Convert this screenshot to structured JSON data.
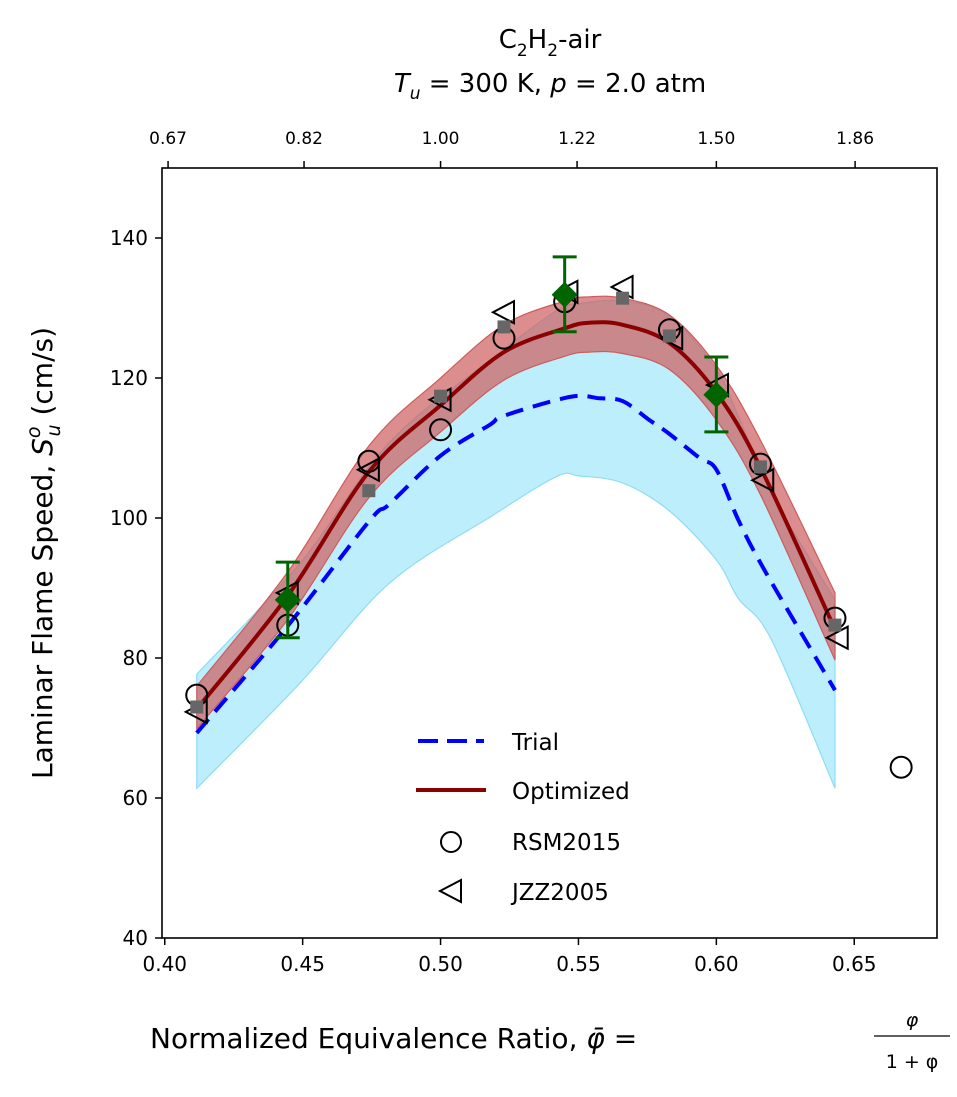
{
  "chart_data": {
    "type": "line",
    "title_line1": {
      "species": "C",
      "sub1": "2",
      "mid": "H",
      "sub2": "2",
      "tail": "-air"
    },
    "title_line2": {
      "T": "T",
      "T_sub": "u",
      "part1": " = 300 K, ",
      "p": "p",
      "part2": " = 2.0 atm"
    },
    "xlabel": "Normalized Equivalence Ratio, ",
    "xlabel_math": {
      "phibar": "φ̄",
      "eq": " = ",
      "num": "φ",
      "den": "1 + φ"
    },
    "ylabel": "Laminar Flame Speed, ",
    "ylabel_math": {
      "S": "S",
      "sup": "o",
      "sub": "u",
      "unit": " (cm/s)"
    },
    "xlim": [
      0.399,
      0.68
    ],
    "ylim": [
      40,
      150
    ],
    "xticks": [
      0.4,
      0.45,
      0.5,
      0.55,
      0.6,
      0.65
    ],
    "xtick_labels": [
      "0.40",
      "0.45",
      "0.50",
      "0.55",
      "0.60",
      "0.65"
    ],
    "yticks": [
      40,
      60,
      80,
      100,
      120,
      140
    ],
    "ytick_labels": [
      "40",
      "60",
      "80",
      "100",
      "120",
      "140"
    ],
    "top_axis": {
      "label_desc": "equivalence ratio phi",
      "ticks_xbar": [
        0.4012,
        0.4505,
        0.5,
        0.5495,
        0.6,
        0.6503
      ],
      "tick_labels": [
        "0.67",
        "0.82",
        "1.00",
        "1.22",
        "1.50",
        "1.86"
      ]
    },
    "grid": false,
    "legend_position": "lower-center",
    "legend": [
      {
        "label": "Trial",
        "kind": "dashed-line",
        "color": "#0000ff"
      },
      {
        "label": "Optimized",
        "kind": "line",
        "color": "#8b0000"
      },
      {
        "label": "RSM2015",
        "kind": "circle-marker",
        "color": "#000000"
      },
      {
        "label": "JZZ2005",
        "kind": "left-triangle-marker",
        "color": "#000000"
      }
    ],
    "series": [
      {
        "name": "Trial",
        "style": "dashed",
        "color": "#0000ff",
        "x": [
          0.4116,
          0.4446,
          0.474,
          0.4815,
          0.5,
          0.5178,
          0.523,
          0.547,
          0.5576,
          0.566,
          0.5757,
          0.583,
          0.5938,
          0.6,
          0.608,
          0.6174,
          0.643
        ],
        "y": [
          69.3,
          84.6,
          99.5,
          102.0,
          108.9,
          113.3,
          114.6,
          117.3,
          117.1,
          116.7,
          114.0,
          112.0,
          108.6,
          106.9,
          99.7,
          92.6,
          75.4
        ]
      },
      {
        "name": "Optimized",
        "style": "solid",
        "color": "#8b0000",
        "x": [
          0.4116,
          0.4446,
          0.474,
          0.5,
          0.523,
          0.545,
          0.554,
          0.566,
          0.583,
          0.6,
          0.616,
          0.643
        ],
        "y": [
          72.7,
          88.9,
          106.6,
          116.1,
          123.7,
          127.1,
          127.9,
          127.6,
          125.0,
          117.9,
          107.2,
          84.1
        ]
      }
    ],
    "bands": [
      {
        "name": "Trial uncertainty",
        "color": "#87ceeb",
        "fill": "#bdeefb",
        "edge": "#8fdcf5",
        "x": [
          0.4116,
          0.449,
          0.4815,
          0.5178,
          0.542,
          0.5504,
          0.566,
          0.583,
          0.6,
          0.608,
          0.62,
          0.643
        ],
        "lower": [
          61.4,
          76.4,
          90.7,
          100.1,
          105.9,
          106.0,
          105.0,
          101.0,
          94.0,
          88.5,
          82.6,
          61.4
        ],
        "upper": [
          77.7,
          93.5,
          110.8,
          122.5,
          129.6,
          130.6,
          131.0,
          128.9,
          121.2,
          114.5,
          103.5,
          88.3
        ]
      },
      {
        "name": "Optimized uncertainty",
        "fill": "#cd5c5c",
        "edge": "#cd5c5c",
        "x": [
          0.4116,
          0.4446,
          0.474,
          0.5,
          0.523,
          0.545,
          0.554,
          0.566,
          0.583,
          0.6,
          0.616,
          0.643
        ],
        "lower": [
          69.9,
          85.5,
          102.9,
          112.3,
          119.7,
          123.1,
          123.7,
          123.5,
          121.2,
          114.0,
          103.3,
          79.7
        ],
        "upper": [
          76.0,
          92.3,
          110.3,
          120.0,
          127.6,
          131.0,
          131.6,
          131.4,
          129.0,
          121.8,
          111.1,
          89.3
        ]
      }
    ],
    "scatter": [
      {
        "name": "RSM2015",
        "marker": "circle",
        "x": [
          0.4116,
          0.4446,
          0.474,
          0.5,
          0.523,
          0.545,
          0.583,
          0.616,
          0.643,
          0.667
        ],
        "y": [
          74.7,
          84.7,
          108.1,
          112.6,
          125.7,
          130.9,
          126.9,
          107.7,
          85.7,
          64.4
        ]
      },
      {
        "name": "JZZ2005",
        "marker": "left-triangle",
        "x": [
          0.4116,
          0.4446,
          0.474,
          0.5,
          0.523,
          0.546,
          0.566,
          0.584,
          0.6006,
          0.617,
          0.644
        ],
        "y": [
          72.3,
          89.3,
          106.9,
          116.9,
          129.4,
          132.3,
          133.0,
          125.7,
          119.0,
          105.4,
          82.9
        ]
      },
      {
        "name": "Optimized model predictions",
        "marker": "square",
        "color": "#666666",
        "x": [
          0.4116,
          0.474,
          0.5,
          0.523,
          0.566,
          0.583,
          0.616,
          0.643
        ],
        "y": [
          73.0,
          103.9,
          117.4,
          127.3,
          131.4,
          126.0,
          107.3,
          84.7
        ]
      },
      {
        "name": "Target data with uncertainty",
        "marker": "diamond",
        "color": "#006400",
        "x": [
          0.4446,
          0.545,
          0.6
        ],
        "y": [
          88.3,
          131.9,
          117.6
        ],
        "err_low": [
          82.9,
          126.6,
          112.3
        ],
        "err_high": [
          93.7,
          137.3,
          123.0
        ]
      }
    ]
  }
}
